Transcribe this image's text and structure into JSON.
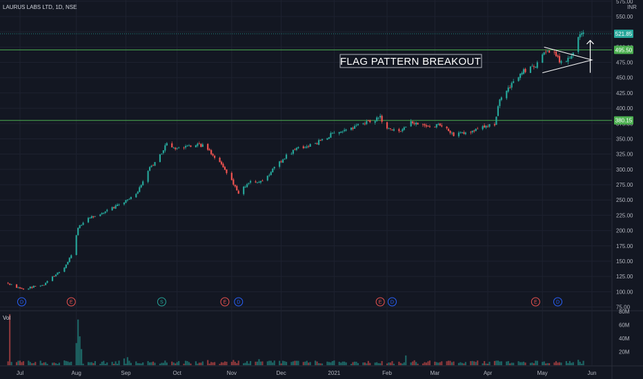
{
  "header": {
    "symbol": "LAURUS LABS LTD, 1D, NSE",
    "currency": "INR"
  },
  "annotation": {
    "text": "FLAG PATTERN BREAKOUT"
  },
  "volume_label": "Vol",
  "colors": {
    "background": "#131722",
    "up": "#26a69a",
    "down": "#ef5350",
    "level": "#4caf50",
    "grid": "#1e2230",
    "text": "#b2b5be",
    "annotation": "#ffffff"
  },
  "events": [
    {
      "letter": "D",
      "x": "2020-07-02",
      "color": "#2962ff"
    },
    {
      "letter": "E",
      "x": "2020-07-31",
      "color": "#ef5350"
    },
    {
      "letter": "S",
      "x": "2020-09-22",
      "color": "#26a69a"
    },
    {
      "letter": "E",
      "x": "2020-10-29",
      "color": "#ef5350"
    },
    {
      "letter": "D",
      "x": "2020-11-06",
      "color": "#2962ff"
    },
    {
      "letter": "E",
      "x": "2021-01-28",
      "color": "#ef5350"
    },
    {
      "letter": "D",
      "x": "2021-02-04",
      "color": "#2962ff"
    },
    {
      "letter": "E",
      "x": "2021-04-29",
      "color": "#ef5350"
    },
    {
      "letter": "D",
      "x": "2021-05-12",
      "color": "#2962ff"
    }
  ],
  "chart_data": {
    "type": "candlestick",
    "title": "LAURUS LABS LTD, 1D, NSE",
    "ylim": [
      70,
      577
    ],
    "y_ticks": [
      75,
      100,
      125,
      150,
      175,
      200,
      225,
      250,
      275,
      300,
      325,
      350,
      375,
      400,
      425,
      450,
      475,
      500,
      525,
      550,
      575
    ],
    "x_ticks": [
      {
        "label": "Jul",
        "date": "2020-07-01"
      },
      {
        "label": "Aug",
        "date": "2020-08-03"
      },
      {
        "label": "Sep",
        "date": "2020-09-01"
      },
      {
        "label": "Oct",
        "date": "2020-10-01"
      },
      {
        "label": "Nov",
        "date": "2020-11-02"
      },
      {
        "label": "Dec",
        "date": "2020-12-01"
      },
      {
        "label": "2021",
        "date": "2021-01-01"
      },
      {
        "label": "Feb",
        "date": "2021-02-01"
      },
      {
        "label": "Mar",
        "date": "2021-03-01"
      },
      {
        "label": "Apr",
        "date": "2021-04-01"
      },
      {
        "label": "May",
        "date": "2021-05-03"
      },
      {
        "label": "Jun",
        "date": "2021-06-01"
      }
    ],
    "price_path": [
      [
        "2020-06-24",
        114
      ],
      [
        "2020-07-02",
        104
      ],
      [
        "2020-07-15",
        112
      ],
      [
        "2020-07-27",
        140
      ],
      [
        "2020-07-31",
        160
      ],
      [
        "2020-08-04",
        205
      ],
      [
        "2020-08-10",
        220
      ],
      [
        "2020-08-19",
        230
      ],
      [
        "2020-08-28",
        242
      ],
      [
        "2020-09-07",
        260
      ],
      [
        "2020-09-14",
        298
      ],
      [
        "2020-09-21",
        322
      ],
      [
        "2020-09-25",
        342
      ],
      [
        "2020-10-01",
        332
      ],
      [
        "2020-10-08",
        338
      ],
      [
        "2020-10-16",
        340
      ],
      [
        "2020-10-23",
        320
      ],
      [
        "2020-10-29",
        300
      ],
      [
        "2020-11-06",
        262
      ],
      [
        "2020-11-13",
        282
      ],
      [
        "2020-11-20",
        280
      ],
      [
        "2020-11-27",
        302
      ],
      [
        "2020-12-04",
        322
      ],
      [
        "2020-12-11",
        335
      ],
      [
        "2020-12-21",
        342
      ],
      [
        "2021-01-01",
        360
      ],
      [
        "2021-01-11",
        368
      ],
      [
        "2021-01-21",
        378
      ],
      [
        "2021-01-28",
        385
      ],
      [
        "2021-02-01",
        368
      ],
      [
        "2021-02-08",
        362
      ],
      [
        "2021-02-15",
        378
      ],
      [
        "2021-02-25",
        372
      ],
      [
        "2021-03-05",
        372
      ],
      [
        "2021-03-12",
        355
      ],
      [
        "2021-03-19",
        362
      ],
      [
        "2021-03-26",
        365
      ],
      [
        "2021-04-05",
        375
      ],
      [
        "2021-04-08",
        415
      ],
      [
        "2021-04-15",
        440
      ],
      [
        "2021-04-22",
        460
      ],
      [
        "2021-04-29",
        470
      ],
      [
        "2021-05-05",
        495
      ],
      [
        "2021-05-10",
        488
      ],
      [
        "2021-05-14",
        475
      ],
      [
        "2021-05-18",
        480
      ],
      [
        "2021-05-21",
        490
      ],
      [
        "2021-05-24",
        515
      ],
      [
        "2021-05-27",
        522
      ]
    ],
    "volume": {
      "ylim": [
        0,
        80
      ],
      "unit": "M",
      "ticks": [
        {
          "value": 20,
          "label": "20M"
        },
        {
          "value": 40,
          "label": "40M"
        },
        {
          "value": 60,
          "label": "60M"
        },
        {
          "value": 80,
          "label": "80M"
        }
      ],
      "spikes": [
        {
          "date": "2020-06-25",
          "value": 76
        },
        {
          "date": "2020-08-03",
          "value": 33
        },
        {
          "date": "2020-08-04",
          "value": 68
        },
        {
          "date": "2020-08-05",
          "value": 43
        },
        {
          "date": "2020-08-06",
          "value": 24
        }
      ]
    },
    "levels": [
      {
        "value": 521.85,
        "label": "521.85",
        "style": "dotted",
        "color": "#26a69a"
      },
      {
        "value": 495.5,
        "label": "495.50",
        "style": "solid",
        "color": "#4caf50"
      },
      {
        "value": 380.15,
        "label": "380.15",
        "style": "solid",
        "color": "#4caf50"
      }
    ]
  }
}
